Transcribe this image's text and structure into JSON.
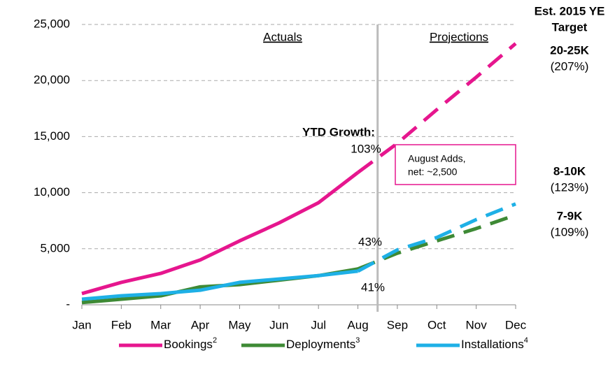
{
  "chart_data": {
    "type": "line",
    "categories": [
      "Jan",
      "Feb",
      "Mar",
      "Apr",
      "May",
      "Jun",
      "Jul",
      "Aug",
      "Sep",
      "Oct",
      "Nov",
      "Dec"
    ],
    "series": [
      {
        "name": "Bookings",
        "footnote": "2",
        "color": "#e6168e",
        "values": [
          1000,
          2000,
          2800,
          4000,
          5700,
          7300,
          9100,
          11800,
          null,
          null,
          null,
          null
        ],
        "projection": [
          null,
          null,
          null,
          null,
          null,
          null,
          null,
          11800,
          14400,
          17400,
          20300,
          23300
        ]
      },
      {
        "name": "Deployments",
        "footnote": "3",
        "color": "#3e8a35",
        "values": [
          200,
          500,
          800,
          1600,
          1800,
          2200,
          2600,
          3200,
          null,
          null,
          null,
          null
        ],
        "projection": [
          null,
          null,
          null,
          null,
          null,
          null,
          null,
          3200,
          4600,
          5700,
          6800,
          8000
        ]
      },
      {
        "name": "Installations",
        "footnote": "4",
        "color": "#1eb0e6",
        "values": [
          500,
          800,
          1000,
          1300,
          2000,
          2300,
          2600,
          3000,
          null,
          null,
          null,
          null
        ],
        "projection": [
          null,
          null,
          null,
          null,
          null,
          null,
          null,
          3000,
          4900,
          6000,
          7600,
          9000
        ]
      }
    ],
    "ylim": [
      0,
      25000
    ],
    "yticks": [
      {
        "value": 0,
        "label": "-"
      },
      {
        "value": 5000,
        "label": "5,000"
      },
      {
        "value": 10000,
        "label": "10,000"
      },
      {
        "value": 15000,
        "label": "15,000"
      },
      {
        "value": 20000,
        "label": "20,000"
      },
      {
        "value": 25000,
        "label": "25,000"
      }
    ],
    "grid": true,
    "annotations": {
      "actuals": "Actuals",
      "projections": "Projections",
      "ytd_growth": "YTD Growth:",
      "bookings_growth": "103%",
      "deployments_growth": "43%",
      "installations_growth": "41%",
      "august_adds": [
        "August Adds,",
        "net:  ~2,500"
      ],
      "target_header": [
        "Est. 2015 YE",
        "Target"
      ],
      "bookings_target": "20-25K",
      "bookings_target_pct": "(207%)",
      "installations_target": "8-10K",
      "installations_target_pct": "(123%)",
      "deployments_target": "7-9K",
      "deployments_target_pct": "(109%)"
    }
  }
}
